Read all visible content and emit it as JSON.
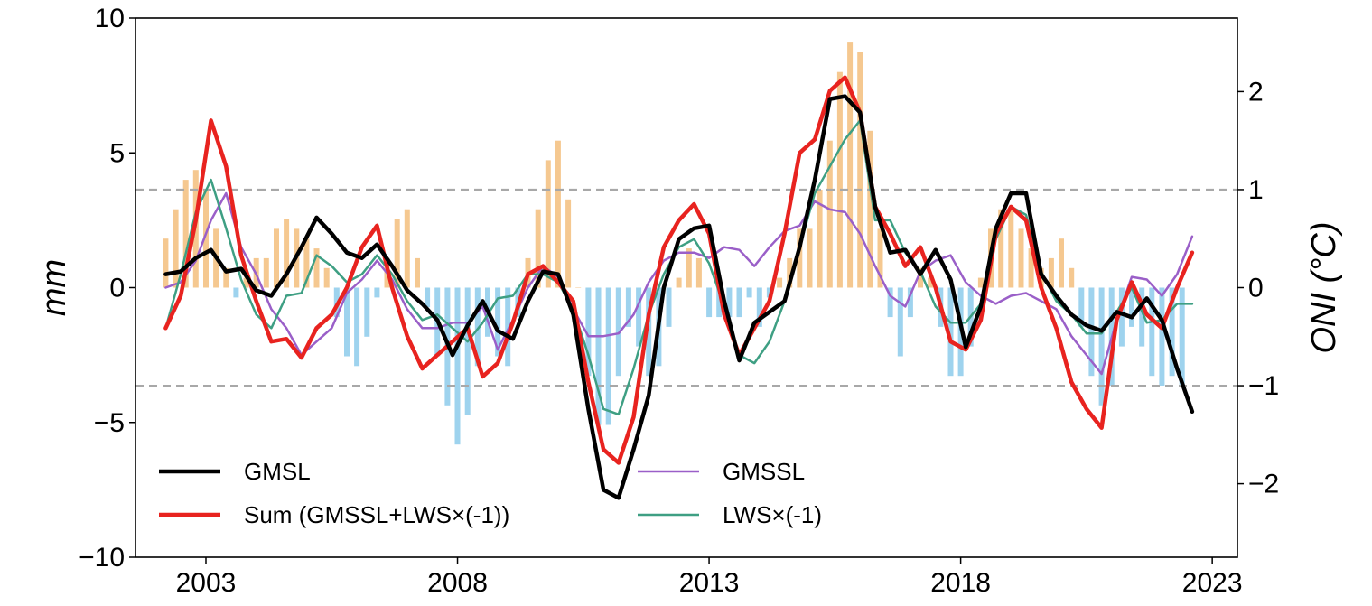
{
  "chart_data": {
    "type": "line",
    "xlabel": "",
    "ylabel": "mm",
    "y2label": "ONI (°C)",
    "xlim": [
      2001.6,
      2023.5
    ],
    "ylim": [
      -10,
      10
    ],
    "y2lim": [
      -2.75,
      2.75
    ],
    "xticks": [
      2003,
      2008,
      2013,
      2018,
      2023
    ],
    "xtick_labels": [
      "2003",
      "2008",
      "2013",
      "2018",
      "2023"
    ],
    "yticks": [
      -10,
      -5,
      0,
      5,
      10
    ],
    "ytick_labels": [
      "−10",
      "−5",
      "0",
      "5",
      "10"
    ],
    "y2ticks": [
      -2,
      -1,
      0,
      1,
      2
    ],
    "y2tick_labels": [
      "−2",
      "−1",
      "0",
      "1",
      "2"
    ],
    "reference_lines_oni": [
      1,
      -1
    ],
    "legend_placement": "lower-left",
    "bars": {
      "name": "ONI",
      "positive_color": "#f5c890",
      "negative_color": "#9ed3ee",
      "x": [
        2002.2,
        2002.4,
        2002.6,
        2002.8,
        2003.0,
        2003.2,
        2003.4,
        2003.6,
        2003.8,
        2004.0,
        2004.2,
        2004.4,
        2004.6,
        2004.8,
        2005.0,
        2005.2,
        2005.4,
        2005.6,
        2005.8,
        2006.0,
        2006.2,
        2006.4,
        2006.6,
        2006.8,
        2007.0,
        2007.2,
        2007.4,
        2007.6,
        2007.8,
        2008.0,
        2008.2,
        2008.4,
        2008.6,
        2008.8,
        2009.0,
        2009.2,
        2009.4,
        2009.6,
        2009.8,
        2010.0,
        2010.2,
        2010.4,
        2010.6,
        2010.8,
        2011.0,
        2011.2,
        2011.4,
        2011.6,
        2011.8,
        2012.0,
        2012.2,
        2012.4,
        2012.6,
        2012.8,
        2013.0,
        2013.2,
        2013.4,
        2013.6,
        2013.8,
        2014.0,
        2014.2,
        2014.4,
        2014.6,
        2014.8,
        2015.0,
        2015.2,
        2015.4,
        2015.6,
        2015.8,
        2016.0,
        2016.2,
        2016.4,
        2016.6,
        2016.8,
        2017.0,
        2017.2,
        2017.4,
        2017.6,
        2017.8,
        2018.0,
        2018.2,
        2018.4,
        2018.6,
        2018.8,
        2019.0,
        2019.2,
        2019.4,
        2019.6,
        2019.8,
        2020.0,
        2020.2,
        2020.4,
        2020.6,
        2020.8,
        2021.0,
        2021.2,
        2021.4,
        2021.6,
        2021.8,
        2022.0,
        2022.2,
        2022.4
      ],
      "values": [
        0.5,
        0.8,
        1.1,
        1.2,
        1.0,
        0.6,
        0.2,
        -0.1,
        0.1,
        0.3,
        0.3,
        0.6,
        0.7,
        0.6,
        0.5,
        0.4,
        0.2,
        -0.3,
        -0.7,
        -0.8,
        -0.5,
        -0.1,
        0.3,
        0.7,
        0.8,
        0.3,
        -0.2,
        -0.7,
        -1.2,
        -1.6,
        -1.3,
        -0.8,
        -0.5,
        -0.7,
        -0.8,
        -0.3,
        0.3,
        0.8,
        1.3,
        1.5,
        0.9,
        0.0,
        -0.9,
        -1.4,
        -1.4,
        -0.9,
        -0.4,
        -0.6,
        -0.9,
        -0.8,
        -0.4,
        0.1,
        0.4,
        0.3,
        -0.3,
        -0.3,
        -0.3,
        -0.3,
        -0.1,
        -0.4,
        -0.1,
        0.1,
        0.3,
        0.6,
        0.6,
        1.0,
        1.5,
        2.2,
        2.5,
        2.4,
        1.6,
        0.6,
        -0.3,
        -0.7,
        -0.3,
        0.2,
        0.1,
        -0.4,
        -0.9,
        -0.9,
        -0.6,
        0.1,
        0.6,
        0.8,
        0.8,
        0.6,
        0.4,
        0.2,
        0.3,
        0.5,
        0.2,
        -0.4,
        -0.9,
        -1.2,
        -1.0,
        -0.6,
        -0.4,
        -0.6,
        -0.9,
        -1.0,
        -0.9,
        -1.0
      ]
    },
    "series": [
      {
        "name": "GMSL",
        "color": "#000000",
        "width": 4.5,
        "x": [
          2002.2,
          2002.5,
          2002.8,
          2003.1,
          2003.4,
          2003.7,
          2004.0,
          2004.3,
          2004.6,
          2004.9,
          2005.2,
          2005.5,
          2005.8,
          2006.1,
          2006.4,
          2006.7,
          2007.0,
          2007.3,
          2007.6,
          2007.9,
          2008.2,
          2008.5,
          2008.8,
          2009.1,
          2009.4,
          2009.7,
          2010.0,
          2010.3,
          2010.6,
          2010.9,
          2011.2,
          2011.5,
          2011.8,
          2012.1,
          2012.4,
          2012.7,
          2013.0,
          2013.3,
          2013.6,
          2013.9,
          2014.2,
          2014.5,
          2014.8,
          2015.1,
          2015.4,
          2015.7,
          2016.0,
          2016.3,
          2016.6,
          2016.9,
          2017.2,
          2017.5,
          2017.8,
          2018.1,
          2018.4,
          2018.7,
          2019.0,
          2019.3,
          2019.6,
          2019.9,
          2020.2,
          2020.5,
          2020.8,
          2021.1,
          2021.4,
          2021.7,
          2022.0,
          2022.3,
          2022.6
        ],
        "y": [
          0.5,
          0.6,
          1.1,
          1.4,
          0.6,
          0.7,
          -0.1,
          -0.3,
          0.5,
          1.5,
          2.6,
          2.0,
          1.3,
          1.1,
          1.6,
          0.8,
          -0.1,
          -0.6,
          -1.2,
          -2.5,
          -1.4,
          -0.5,
          -1.6,
          -1.9,
          -0.5,
          0.6,
          0.5,
          -1.0,
          -4.5,
          -7.5,
          -7.8,
          -6.0,
          -4.0,
          0.0,
          1.8,
          2.2,
          2.3,
          -0.5,
          -2.7,
          -1.3,
          -0.9,
          -0.5,
          1.5,
          4.0,
          7.0,
          7.1,
          6.5,
          3.0,
          1.3,
          1.4,
          0.5,
          1.4,
          0.3,
          -2.2,
          -0.7,
          2.2,
          3.5,
          3.5,
          0.5,
          -0.3,
          -1.0,
          -1.4,
          -1.6,
          -0.9,
          -1.1,
          -0.4,
          -1.2,
          -3.0,
          -4.6
        ]
      },
      {
        "name": "Sum (GMSSL+LWS×(-1))",
        "color": "#e8231f",
        "width": 4.5,
        "x": [
          2002.2,
          2002.5,
          2002.8,
          2003.1,
          2003.4,
          2003.7,
          2004.0,
          2004.3,
          2004.6,
          2004.9,
          2005.2,
          2005.5,
          2005.8,
          2006.1,
          2006.4,
          2006.7,
          2007.0,
          2007.3,
          2007.6,
          2007.9,
          2008.2,
          2008.5,
          2008.8,
          2009.1,
          2009.4,
          2009.7,
          2010.0,
          2010.3,
          2010.6,
          2010.9,
          2011.2,
          2011.5,
          2011.8,
          2012.1,
          2012.4,
          2012.7,
          2013.0,
          2013.3,
          2013.6,
          2013.9,
          2014.2,
          2014.5,
          2014.8,
          2015.1,
          2015.4,
          2015.7,
          2016.0,
          2016.3,
          2016.6,
          2016.9,
          2017.2,
          2017.5,
          2017.8,
          2018.1,
          2018.4,
          2018.7,
          2019.0,
          2019.3,
          2019.6,
          2019.9,
          2020.2,
          2020.5,
          2020.8,
          2021.1,
          2021.4,
          2021.7,
          2022.0,
          2022.3,
          2022.6
        ],
        "y": [
          -1.5,
          -0.3,
          2.5,
          6.2,
          4.5,
          1.2,
          -0.5,
          -2.0,
          -1.9,
          -2.6,
          -1.5,
          -1.0,
          0.0,
          1.5,
          2.3,
          0.0,
          -1.8,
          -3.0,
          -2.5,
          -2.0,
          -1.5,
          -3.3,
          -2.8,
          -1.3,
          0.5,
          0.8,
          0.2,
          -0.5,
          -3.5,
          -6.0,
          -6.5,
          -4.8,
          -1.0,
          1.5,
          2.5,
          3.1,
          2.0,
          -1.0,
          -2.5,
          -1.5,
          -0.5,
          2.0,
          5.0,
          5.5,
          7.3,
          7.8,
          6.5,
          3.0,
          2.0,
          0.8,
          1.5,
          0.0,
          -2.0,
          -2.3,
          -1.2,
          2.0,
          3.0,
          2.5,
          0.0,
          -1.5,
          -3.5,
          -4.5,
          -5.2,
          -1.2,
          0.2,
          -1.0,
          -1.5,
          0.0,
          1.3
        ]
      },
      {
        "name": "GMSSL",
        "color": "#9a5fc8",
        "width": 2.5,
        "x": [
          2002.2,
          2002.5,
          2002.8,
          2003.1,
          2003.4,
          2003.7,
          2004.0,
          2004.3,
          2004.6,
          2004.9,
          2005.2,
          2005.5,
          2005.8,
          2006.1,
          2006.4,
          2006.7,
          2007.0,
          2007.3,
          2007.6,
          2007.9,
          2008.2,
          2008.5,
          2008.8,
          2009.1,
          2009.4,
          2009.7,
          2010.0,
          2010.3,
          2010.6,
          2010.9,
          2011.2,
          2011.5,
          2011.8,
          2012.1,
          2012.4,
          2012.7,
          2013.0,
          2013.3,
          2013.6,
          2013.9,
          2014.2,
          2014.5,
          2014.8,
          2015.1,
          2015.4,
          2015.7,
          2016.0,
          2016.3,
          2016.6,
          2016.9,
          2017.2,
          2017.5,
          2017.8,
          2018.1,
          2018.4,
          2018.7,
          2019.0,
          2019.3,
          2019.6,
          2019.9,
          2020.2,
          2020.5,
          2020.8,
          2021.1,
          2021.4,
          2021.7,
          2022.0,
          2022.3,
          2022.6
        ],
        "y": [
          0.0,
          0.2,
          1.0,
          2.5,
          3.5,
          1.5,
          0.5,
          -0.8,
          -1.5,
          -2.5,
          -2.0,
          -1.5,
          -0.2,
          0.3,
          1.0,
          0.3,
          -0.8,
          -1.5,
          -1.5,
          -1.3,
          -1.3,
          -0.7,
          -2.3,
          -1.2,
          0.0,
          0.8,
          0.4,
          -0.8,
          -1.8,
          -1.8,
          -1.7,
          -1.0,
          0.2,
          1.0,
          1.3,
          1.3,
          1.1,
          1.5,
          1.4,
          0.8,
          1.5,
          2.1,
          2.3,
          3.2,
          2.9,
          2.8,
          2.0,
          0.8,
          -0.3,
          -0.7,
          0.6,
          1.0,
          1.2,
          0.2,
          -0.3,
          -0.6,
          -0.3,
          -0.2,
          -0.5,
          -0.8,
          -1.8,
          -2.5,
          -3.2,
          -1.2,
          0.4,
          0.3,
          -0.3,
          0.5,
          1.9
        ]
      },
      {
        "name": "LWS×(-1)",
        "color": "#3e9f83",
        "width": 2.5,
        "x": [
          2002.2,
          2002.5,
          2002.8,
          2003.1,
          2003.4,
          2003.7,
          2004.0,
          2004.3,
          2004.6,
          2004.9,
          2005.2,
          2005.5,
          2005.8,
          2006.1,
          2006.4,
          2006.7,
          2007.0,
          2007.3,
          2007.6,
          2007.9,
          2008.2,
          2008.5,
          2008.8,
          2009.1,
          2009.4,
          2009.7,
          2010.0,
          2010.3,
          2010.6,
          2010.9,
          2011.2,
          2011.5,
          2011.8,
          2012.1,
          2012.4,
          2012.7,
          2013.0,
          2013.3,
          2013.6,
          2013.9,
          2014.2,
          2014.5,
          2014.8,
          2015.1,
          2015.4,
          2015.7,
          2016.0,
          2016.3,
          2016.6,
          2016.9,
          2017.2,
          2017.5,
          2017.8,
          2018.1,
          2018.4,
          2018.7,
          2019.0,
          2019.3,
          2019.6,
          2019.9,
          2020.2,
          2020.5,
          2020.8,
          2021.1,
          2021.4,
          2021.7,
          2022.0,
          2022.3,
          2022.6
        ],
        "y": [
          -1.5,
          0.5,
          2.8,
          4.0,
          2.2,
          0.3,
          -1.0,
          -1.5,
          -0.3,
          -0.2,
          1.2,
          0.8,
          0.2,
          0.5,
          1.2,
          0.5,
          -0.5,
          -1.2,
          -1.0,
          -1.5,
          -2.0,
          -1.3,
          -0.4,
          -0.3,
          0.5,
          0.5,
          0.2,
          -0.8,
          -2.5,
          -4.5,
          -4.7,
          -3.0,
          -1.0,
          0.5,
          1.5,
          1.8,
          0.9,
          -0.7,
          -2.5,
          -2.8,
          -2.0,
          -0.5,
          1.5,
          3.5,
          4.5,
          5.5,
          6.2,
          2.5,
          2.5,
          1.3,
          0.6,
          -0.7,
          -1.3,
          -1.3,
          -0.6,
          1.8,
          3.0,
          2.7,
          0.6,
          -0.5,
          -1.0,
          -1.7,
          -1.7,
          -0.9,
          0.0,
          -1.3,
          -1.2,
          -0.6,
          -0.6
        ]
      }
    ]
  }
}
